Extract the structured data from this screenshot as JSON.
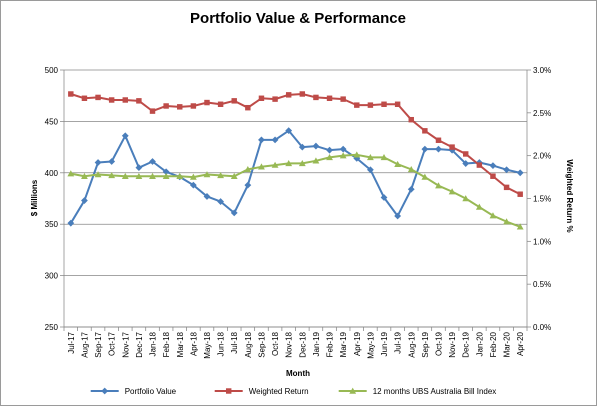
{
  "chart_data": {
    "type": "line",
    "title": "Portfolio Value & Performance",
    "xlabel": "Month",
    "ylabel_left": "$ Millions",
    "ylabel_right": "Weighted Return %",
    "ylim_left": [
      250,
      500
    ],
    "ylim_right": [
      0,
      0.03
    ],
    "yticks_left": [
      "250",
      "300",
      "350",
      "400",
      "450",
      "500"
    ],
    "yticks_right": [
      "0.0%",
      "0.5%",
      "1.0%",
      "1.5%",
      "2.0%",
      "2.5%",
      "3.0%"
    ],
    "grid": true,
    "legend_position": "bottom",
    "categories": [
      "Jul-17",
      "Aug-17",
      "Sep-17",
      "Oct-17",
      "Nov-17",
      "Dec-17",
      "Jan-18",
      "Feb-18",
      "Mar-18",
      "Apr-18",
      "May-18",
      "Jun-18",
      "Jul-18",
      "Aug-18",
      "Sep-18",
      "Oct-18",
      "Nov-18",
      "Dec-18",
      "Jan-19",
      "Feb-19",
      "Mar-19",
      "Apr-19",
      "May-19",
      "Jun-19",
      "Jul-19",
      "Aug-19",
      "Sep-19",
      "Oct-19",
      "Nov-19",
      "Dec-19",
      "Jan-20",
      "Feb-20",
      "Mar-20",
      "Apr-20"
    ],
    "series": [
      {
        "name": "Portfolio Value",
        "axis": "left",
        "color": "#4a7ebb",
        "marker": "diamond",
        "values": [
          351,
          373,
          410,
          411,
          436,
          405,
          411,
          401,
          396,
          388,
          377,
          372,
          361,
          388,
          432,
          432,
          441,
          425,
          426,
          422,
          423,
          414,
          403,
          376,
          358,
          384,
          423,
          423,
          422,
          409,
          410,
          407,
          403,
          400
        ]
      },
      {
        "name": "Weighted Return",
        "axis": "right",
        "color": "#be4b48",
        "marker": "square",
        "values": [
          0.0272,
          0.0267,
          0.0268,
          0.0265,
          0.0265,
          0.0264,
          0.0252,
          0.0258,
          0.0257,
          0.0258,
          0.0262,
          0.026,
          0.0264,
          0.0256,
          0.0267,
          0.0266,
          0.0271,
          0.0272,
          0.0268,
          0.0267,
          0.0266,
          0.0259,
          0.0259,
          0.026,
          0.026,
          0.0242,
          0.0229,
          0.0218,
          0.021,
          0.0202,
          0.0189,
          0.0176,
          0.0163,
          0.0155
        ]
      },
      {
        "name": "12 months UBS Australia Bill Index",
        "axis": "right",
        "color": "#98b954",
        "marker": "triangle",
        "values": [
          0.0179,
          0.0176,
          0.0178,
          0.0177,
          0.0176,
          0.0176,
          0.0176,
          0.0176,
          0.0176,
          0.0175,
          0.0178,
          0.0177,
          0.0176,
          0.0184,
          0.0187,
          0.0189,
          0.0191,
          0.0191,
          0.0194,
          0.0198,
          0.02,
          0.0201,
          0.0198,
          0.0198,
          0.019,
          0.0184,
          0.0175,
          0.0165,
          0.0158,
          0.015,
          0.014,
          0.013,
          0.0123,
          0.0117
        ]
      }
    ]
  }
}
